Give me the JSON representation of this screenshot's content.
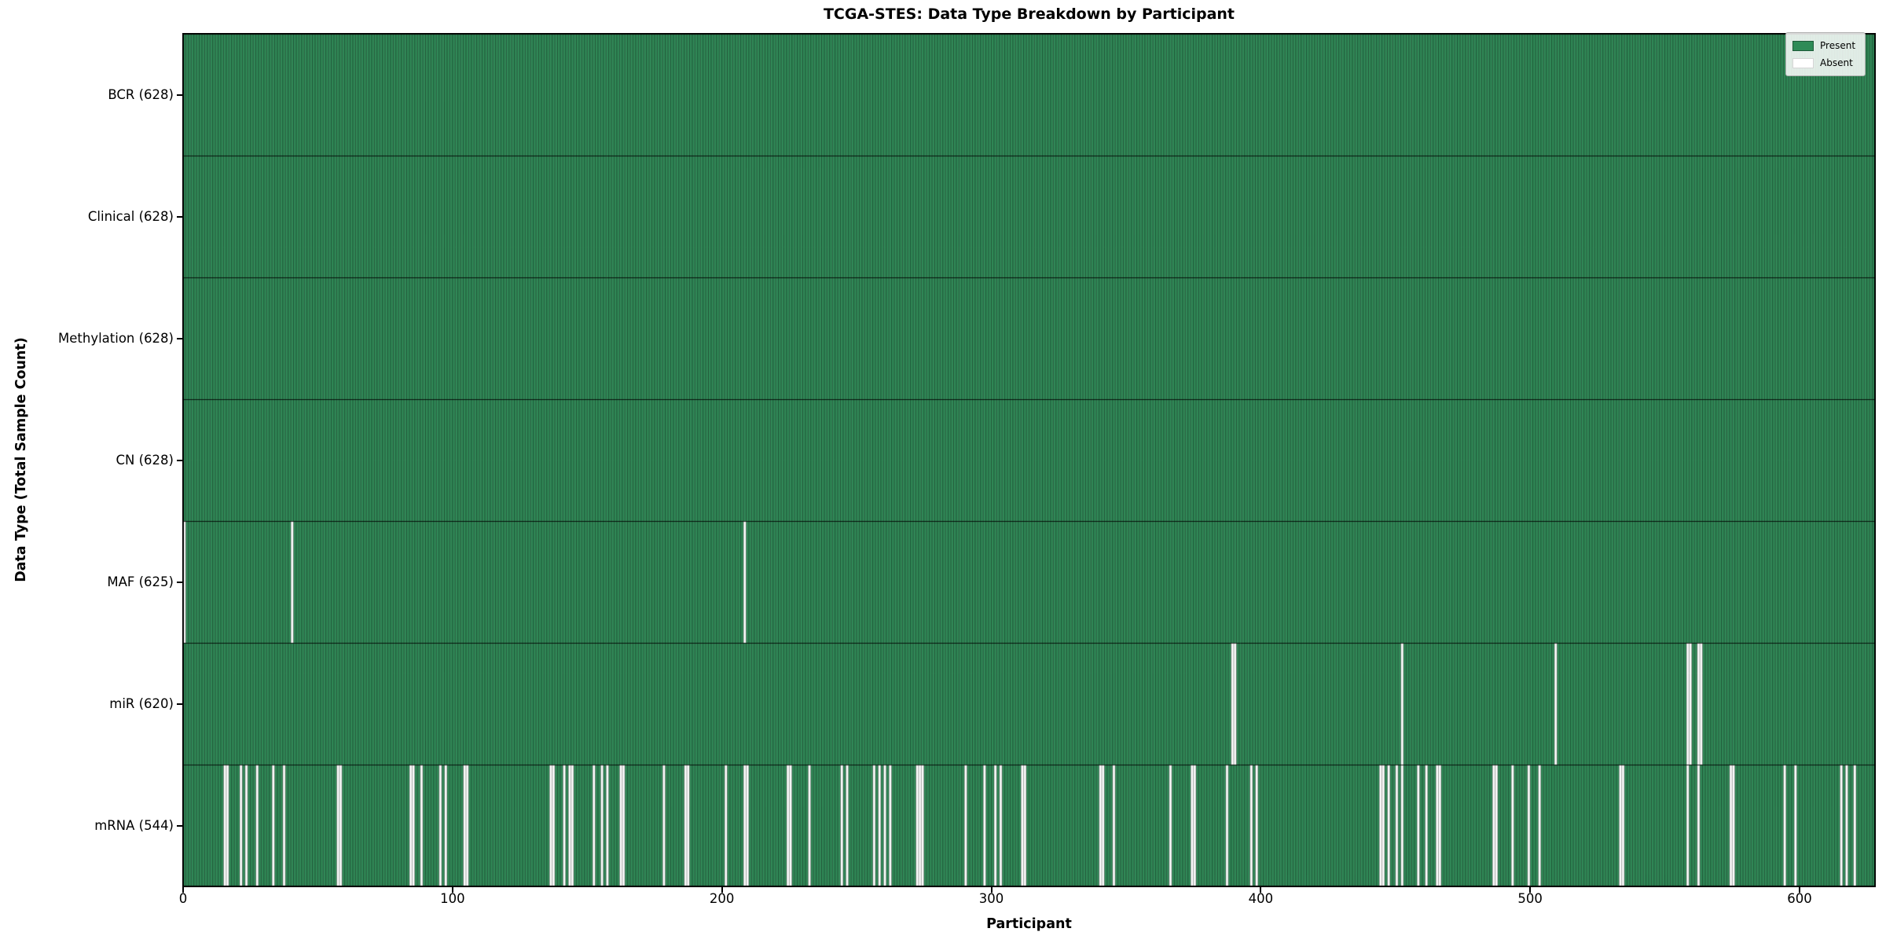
{
  "title": "TCGA-STES: Data Type Breakdown by Participant",
  "chart_data": {
    "type": "heatmap",
    "title": "TCGA-STES: Data Type Breakdown by Participant",
    "xlabel": "Participant",
    "ylabel": "Data Type (Total Sample Count)",
    "n_participants": 628,
    "x_ticks": [
      0,
      100,
      200,
      300,
      400,
      500,
      600
    ],
    "x_range": [
      0,
      628
    ],
    "grid": false,
    "cell_states": {
      "present": 1,
      "absent": 0
    },
    "legend": {
      "position": "upper right",
      "entries": [
        {
          "label": "Present",
          "color": "#2e8b57"
        },
        {
          "label": "Absent",
          "color": "#ffffff"
        }
      ]
    },
    "colors": {
      "present": "#318a58",
      "absent": "#ffffff",
      "cell_edge": "rgba(0,0,0,0.50)",
      "row_divider": "rgba(0,0,0,0.85)",
      "spine": "#000000"
    },
    "rows": [
      {
        "label": "BCR (628)",
        "name": "BCR",
        "total": 628,
        "absent": []
      },
      {
        "label": "Clinical (628)",
        "name": "Clinical",
        "total": 628,
        "absent": []
      },
      {
        "label": "Methylation (628)",
        "name": "Methylation",
        "total": 628,
        "absent": []
      },
      {
        "label": "CN (628)",
        "name": "CN",
        "total": 628,
        "absent": []
      },
      {
        "label": "MAF (625)",
        "name": "MAF",
        "total": 625,
        "absent": [
          0,
          40,
          208
        ]
      },
      {
        "label": "miR (620)",
        "name": "miR",
        "total": 620,
        "absent": [
          389,
          390,
          452,
          509,
          558,
          559,
          562,
          563
        ]
      },
      {
        "label": "mRNA (544)",
        "name": "mRNA",
        "total": 544,
        "absent": [
          15,
          16,
          21,
          23,
          27,
          33,
          37,
          57,
          58,
          84,
          85,
          88,
          95,
          97,
          104,
          105,
          136,
          137,
          141,
          143,
          144,
          152,
          155,
          157,
          162,
          163,
          178,
          186,
          187,
          201,
          208,
          209,
          224,
          225,
          232,
          244,
          246,
          256,
          258,
          260,
          262,
          272,
          273,
          274,
          290,
          297,
          301,
          303,
          311,
          312,
          340,
          341,
          345,
          366,
          374,
          375,
          387,
          396,
          398,
          444,
          445,
          447,
          450,
          452,
          458,
          461,
          465,
          466,
          486,
          487,
          493,
          499,
          503,
          533,
          534,
          558,
          562,
          574,
          575,
          594,
          598,
          615,
          617,
          620
        ]
      }
    ]
  }
}
